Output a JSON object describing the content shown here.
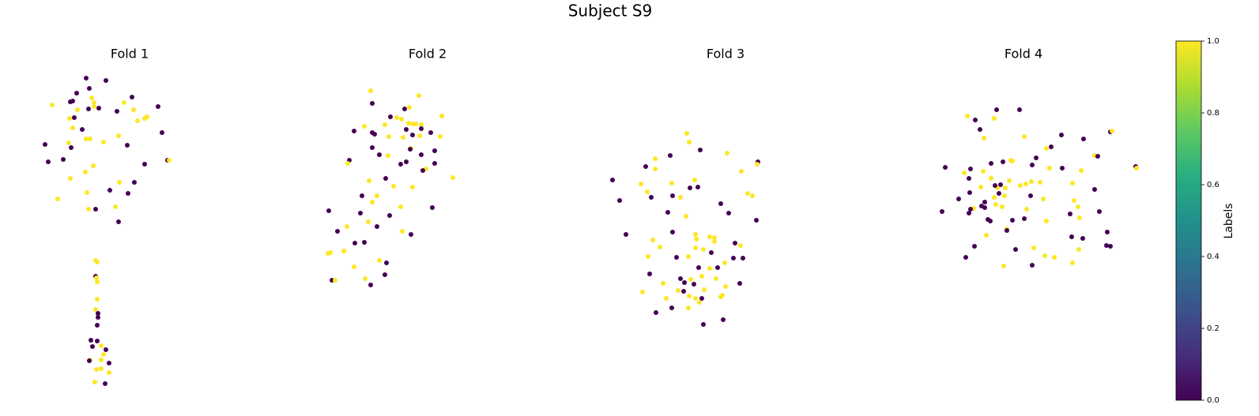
{
  "title": "Subject S9",
  "chart_data": [
    {
      "type": "scatter",
      "title": "Fold 1",
      "xlim": [
        0,
        330
      ],
      "ylim": [
        527,
        0
      ],
      "x": [
        109,
        134,
        113,
        97,
        66,
        89,
        92,
        116,
        119,
        119,
        112,
        125,
        98,
        167,
        157,
        200,
        169,
        148,
        88,
        94,
        186,
        183,
        174,
        92,
        104,
        205,
        150,
        109,
        114,
        87,
        131,
        57,
        90,
        161,
        80,
        61,
        212,
        214,
        183,
        118,
        108,
        89,
        151,
        170,
        139,
        110,
        162,
        73,
        112,
        121,
        146,
        150,
        121,
        123,
        121,
        122,
        123,
        123,
        121,
        124,
        124,
        123,
        115,
        123,
        117,
        128,
        134,
        131,
        114,
        113,
        128,
        138,
        122,
        128,
        138,
        120,
        133
      ],
      "y": [
        99,
        102,
        112,
        118,
        133,
        129,
        128,
        124,
        130,
        135,
        138,
        137,
        139,
        123,
        130,
        135,
        139,
        141,
        150,
        149,
        148,
        150,
        153,
        162,
        164,
        168,
        172,
        176,
        176,
        181,
        180,
        183,
        187,
        184,
        202,
        205,
        203,
        203,
        208,
        210,
        218,
        226,
        231,
        231,
        241,
        244,
        245,
        252,
        265,
        265,
        262,
        281,
        330,
        332,
        350,
        352,
        357,
        379,
        392,
        397,
        402,
        412,
        431,
        432,
        439,
        438,
        443,
        449,
        456,
        457,
        456,
        460,
        468,
        467,
        472,
        484,
        486
      ],
      "labels": [
        0,
        0,
        0,
        0,
        1,
        0,
        0,
        1,
        1,
        1,
        0,
        0,
        1,
        0,
        1,
        0,
        1,
        0,
        1,
        0,
        1,
        1,
        1,
        1,
        0,
        0,
        1,
        1,
        1,
        1,
        1,
        0,
        0,
        0,
        0,
        0,
        0,
        1,
        0,
        1,
        1,
        1,
        1,
        0,
        0,
        1,
        0,
        1,
        1,
        0,
        1,
        0,
        1,
        1,
        0,
        1,
        1,
        1,
        1,
        0,
        0,
        0,
        0,
        0,
        0,
        1,
        0,
        1,
        1,
        0,
        1,
        0,
        1,
        1,
        1,
        1,
        0
      ]
    },
    {
      "type": "scatter",
      "title": "Fold 2",
      "xlim": [
        377,
        707
      ],
      "ylim": [
        527,
        0
      ],
      "x": [
        469,
        530,
        471,
        518,
        512,
        494,
        502,
        508,
        559,
        517,
        522,
        526,
        533,
        487,
        461,
        514,
        533,
        471,
        474,
        448,
        545,
        522,
        492,
        510,
        531,
        557,
        471,
        520,
        519,
        550,
        480,
        533,
        491,
        442,
        440,
        514,
        507,
        550,
        539,
        535,
        573,
        488,
        467,
        522,
        458,
        498,
        477,
        471,
        507,
        456,
        416,
        547,
        493,
        466,
        427,
        477,
        439,
        509,
        520,
        449,
        461,
        435,
        418,
        415,
        448,
        480,
        489,
        420,
        424,
        462,
        487,
        469
      ],
      "y": [
        115,
        121,
        131,
        136,
        138,
        148,
        149,
        151,
        147,
        156,
        157,
        157,
        158,
        158,
        160,
        164,
        163,
        168,
        170,
        166,
        168,
        171,
        173,
        174,
        172,
        173,
        187,
        188,
        189,
        191,
        196,
        196,
        197,
        203,
        207,
        205,
        208,
        207,
        214,
        216,
        225,
        226,
        229,
        237,
        248,
        236,
        248,
        256,
        262,
        270,
        267,
        263,
        273,
        281,
        293,
        287,
        287,
        293,
        297,
        308,
        307,
        318,
        320,
        321,
        338,
        330,
        333,
        355,
        355,
        353,
        348,
        361
      ],
      "labels": [
        1,
        1,
        0,
        1,
        0,
        0,
        1,
        1,
        1,
        1,
        1,
        1,
        1,
        1,
        1,
        0,
        0,
        0,
        0,
        0,
        0,
        0,
        1,
        1,
        1,
        1,
        0,
        1,
        0,
        0,
        0,
        0,
        1,
        0,
        1,
        0,
        0,
        0,
        1,
        0,
        1,
        0,
        1,
        1,
        0,
        1,
        1,
        1,
        1,
        0,
        0,
        0,
        0,
        1,
        0,
        0,
        1,
        1,
        0,
        0,
        0,
        1,
        1,
        1,
        1,
        1,
        0,
        0,
        1,
        1,
        0,
        0
      ]
    },
    {
      "type": "scatter",
      "title": "Fold 3",
      "xlim": [
        754,
        1084
      ],
      "ylim": [
        527,
        0
      ],
      "x": [
        869,
        872,
        886,
        920,
        848,
        829,
        959,
        958,
        817,
        829,
        938,
        775,
        879,
        811,
        850,
        873,
        883,
        819,
        946,
        952,
        784,
        861,
        824,
        851,
        912,
        845,
        868,
        922,
        957,
        792,
        851,
        880,
        898,
        904,
        904,
        881,
        826,
        890,
        835,
        930,
        880,
        900,
        937,
        928,
        940,
        871,
        820,
        856,
        917,
        884,
        898,
        908,
        888,
        822,
        861,
        874,
        906,
        878,
        866,
        839,
        936,
        918,
        891,
        858,
        865,
        813,
        914,
        888,
        880,
        912,
        872,
        885,
        843,
        850,
        871,
        830,
        915,
        890
      ],
      "y": [
        169,
        180,
        190,
        194,
        197,
        201,
        205,
        208,
        211,
        214,
        217,
        228,
        228,
        233,
        232,
        238,
        237,
        243,
        245,
        248,
        254,
        250,
        250,
        248,
        258,
        269,
        274,
        270,
        279,
        297,
        294,
        297,
        300,
        301,
        306,
        303,
        304,
        316,
        313,
        308,
        314,
        320,
        311,
        327,
        327,
        325,
        325,
        326,
        333,
        339,
        340,
        339,
        350,
        347,
        353,
        354,
        353,
        360,
        358,
        359,
        359,
        363,
        367,
        368,
        369,
        370,
        374,
        378,
        378,
        376,
        375,
        383,
        378,
        390,
        390,
        396,
        405,
        411
      ],
      "labels": [
        1,
        1,
        0,
        1,
        0,
        1,
        0,
        1,
        0,
        1,
        1,
        0,
        1,
        1,
        1,
        0,
        0,
        1,
        1,
        1,
        0,
        1,
        0,
        0,
        0,
        0,
        1,
        0,
        0,
        0,
        0,
        1,
        1,
        1,
        1,
        1,
        1,
        1,
        1,
        0,
        1,
        0,
        1,
        0,
        0,
        1,
        1,
        0,
        1,
        0,
        1,
        0,
        1,
        0,
        0,
        1,
        1,
        0,
        0,
        1,
        0,
        1,
        1,
        1,
        0,
        1,
        1,
        0,
        1,
        1,
        1,
        1,
        1,
        0,
        1,
        0,
        0,
        0
      ]
    },
    {
      "type": "scatter",
      "title": "Fold 4",
      "xlim": [
        1131,
        1461
      ],
      "ylim": [
        527,
        0
      ],
      "x": [
        1224,
        1234,
        1261,
        1290,
        1258,
        1240,
        1245,
        1296,
        1343,
        1371,
        1405,
        1407,
        1330,
        1324,
        1385,
        1389,
        1311,
        1279,
        1254,
        1269,
        1281,
        1196,
        1306,
        1328,
        1344,
        1244,
        1228,
        1220,
        1368,
        1437,
        1438,
        1226,
        1254,
        1277,
        1305,
        1316,
        1266,
        1241,
        1262,
        1272,
        1259,
        1291,
        1298,
        1357,
        1385,
        1227,
        1264,
        1258,
        1271,
        1304,
        1359,
        1320,
        1213,
        1246,
        1260,
        1364,
        1242,
        1246,
        1232,
        1268,
        1228,
        1299,
        1192,
        1391,
        1226,
        1354,
        1250,
        1366,
        1281,
        1253,
        1324,
        1296,
        1274,
        1274,
        1401,
        1248,
        1356,
        1370,
        1405,
        1233,
        1400,
        1285,
        1308,
        1365,
        1322,
        1334,
        1222,
        1357,
        1306,
        1270
      ],
      "y": [
        147,
        152,
        139,
        139,
        150,
        164,
        175,
        173,
        171,
        176,
        167,
        166,
        186,
        188,
        197,
        198,
        200,
        203,
        207,
        205,
        204,
        212,
        209,
        213,
        213,
        217,
        214,
        219,
        216,
        211,
        213,
        226,
        226,
        229,
        230,
        231,
        234,
        237,
        238,
        238,
        235,
        235,
        233,
        232,
        240,
        244,
        245,
        250,
        248,
        248,
        254,
        252,
        252,
        256,
        259,
        262,
        261,
        263,
        264,
        262,
        265,
        265,
        268,
        268,
        270,
        271,
        278,
        276,
        279,
        280,
        280,
        277,
        290,
        292,
        294,
        298,
        300,
        302,
        312,
        312,
        311,
        316,
        314,
        316,
        324,
        326,
        326,
        333,
        336,
        337
      ],
      "labels": [
        1,
        0,
        0,
        0,
        1,
        0,
        1,
        1,
        0,
        0,
        0,
        1,
        0,
        1,
        1,
        0,
        0,
        1,
        0,
        0,
        1,
        0,
        0,
        1,
        0,
        1,
        0,
        1,
        1,
        0,
        1,
        0,
        1,
        1,
        1,
        1,
        0,
        1,
        1,
        1,
        0,
        1,
        1,
        1,
        0,
        0,
        0,
        1,
        1,
        0,
        1,
        1,
        0,
        0,
        1,
        1,
        0,
        0,
        1,
        1,
        0,
        1,
        0,
        0,
        0,
        0,
        0,
        1,
        0,
        0,
        1,
        0,
        1,
        0,
        0,
        1,
        0,
        0,
        0,
        0,
        0,
        0,
        1,
        1,
        1,
        1,
        0,
        1,
        0,
        1
      ]
    }
  ],
  "colorbar": {
    "label": "Labels",
    "colormap": "viridis",
    "lim": [
      0,
      1
    ],
    "ticks": [
      {
        "value": 0,
        "label": "0.0"
      },
      0.2,
      0.4,
      0.6,
      0.8,
      {
        "value": 1,
        "label": "1.0"
      }
    ]
  }
}
